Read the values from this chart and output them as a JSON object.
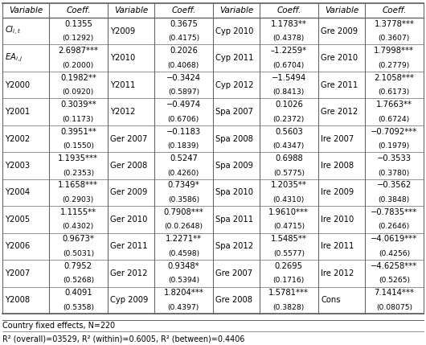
{
  "footer1": "Country fixed effects, N=220",
  "footer2": "R² (overall)=03529, R² (within)=0.6005, R² (between)=0.4406",
  "headers": [
    "Variable",
    "Coeff.",
    "Variable",
    "Coeff.",
    "Variable",
    "Coeff.",
    "Variable",
    "Coeff."
  ],
  "rows": [
    [
      "CI",
      "it",
      "0.1355\n(0.1292)",
      "Y2009",
      "0.3675\n(0.4175)",
      "Cyp 2010",
      "1.1783**\n(0.4378)",
      "Gre 2009",
      "1.3778***\n(0.3607)"
    ],
    [
      "EA",
      "ij",
      "2.6987***\n(0.2000)",
      "Y2010",
      "0.2026\n(0.4068)",
      "Cyp 2011",
      "–1.2259*\n(0.6704)",
      "Gre 2010",
      "1.7998***\n(0.2779)"
    ],
    [
      "Y2000",
      "",
      "0.1982**\n(0.0920)",
      "Y2011",
      "−0.3424\n(0.5897)",
      "Cyp 2012",
      "−1.5494\n(0.8413)",
      "Gre 2011",
      "2.1058***\n(0.6173)"
    ],
    [
      "Y2001",
      "",
      "0.3039**\n(0.1173)",
      "Y2012",
      "−0.4974\n(0.6706)",
      "Spa 2007",
      "0.1026\n(0.2372)",
      "Gre 2012",
      "1.7663**\n(0.6724)"
    ],
    [
      "Y2002",
      "",
      "0.3951**\n(0.1550)",
      "Ger 2007",
      "−0.1183\n(0.1839)",
      "Spa 2008",
      "0.5603\n(0.4347)",
      "Ire 2007",
      "−0.7092***\n(0.1979)"
    ],
    [
      "Y2003",
      "",
      "1.1935***\n(0.2353)",
      "Ger 2008",
      "0.5247\n(0.4260)",
      "Spa 2009",
      "0.6988\n(0.5775)",
      "Ire 2008",
      "−0.3533\n(0.3780)"
    ],
    [
      "Y2004",
      "",
      "1.1658***\n(0.2903)",
      "Ger 2009",
      "0.7349*\n(0.3586)",
      "Spa 2010",
      "1.2035**\n(0.4310)",
      "Ire 2009",
      "−0.3562\n(0.3848)"
    ],
    [
      "Y2005",
      "",
      "1.1155**\n(0.4302)",
      "Ger 2010",
      "0.7908***\n(0.0.2648)",
      "Spa 2011",
      "1.9610***\n(0.4715)",
      "Ire 2010",
      "−0.7835***\n(0.2646)"
    ],
    [
      "Y2006",
      "",
      "0.9673*\n(0.5031)",
      "Ger 2011",
      "1.2271**\n(0.4598)",
      "Spa 2012",
      "1.5485**\n(0.5577)",
      "Ire 2011",
      "−4.0619***\n(0.4256)"
    ],
    [
      "Y2007",
      "",
      "0.7952\n(0.5268)",
      "Ger 2012",
      "0.9348*\n(0.5394)",
      "Gre 2007",
      "0.2695\n(0.1716)",
      "Ire 2012",
      "−4.6258***\n(0.5265)"
    ],
    [
      "Y2008",
      "",
      "0.4091\n(0.5358)",
      "Cyp 2009",
      "1.8204***\n(0.4397)",
      "Gre 2008",
      "1.5781***\n(0.3828)",
      "Cons",
      "7.1414***\n(0.08075)"
    ]
  ],
  "bg_color": "#ffffff",
  "line_color": "#666666",
  "text_color": "#000000",
  "fontsize": 7.2,
  "header_fontsize": 7.5
}
